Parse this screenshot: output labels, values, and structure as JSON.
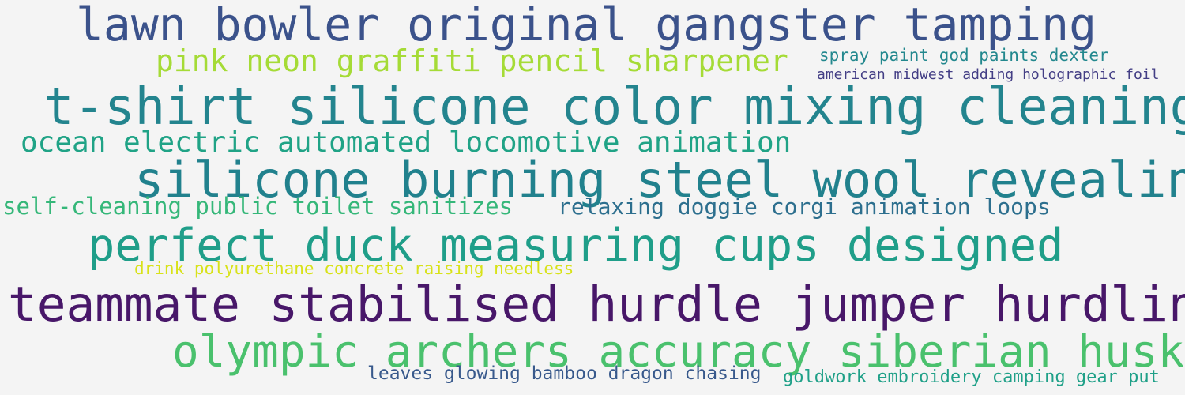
{
  "phrases": [
    {
      "text": "lawn bowler original gangster tamping",
      "color": "#3b528b"
    },
    {
      "text": "pink neon graffiti pencil sharpener",
      "color": "#a5db36"
    },
    {
      "text": "spray paint god paints dexter",
      "color": "#23888e"
    },
    {
      "text": "american midwest adding holographic foil",
      "color": "#433e85"
    },
    {
      "text": "t-shirt silicone color mixing cleaning",
      "color": "#23848e"
    },
    {
      "text": "ocean electric automated locomotive animation",
      "color": "#20a386"
    },
    {
      "text": "silicone burning steel wool revealing",
      "color": "#21818d"
    },
    {
      "text": "self-cleaning public toilet sanitizes",
      "color": "#35b779"
    },
    {
      "text": "relaxing doggie corgi animation loops",
      "color": "#2d6f8e"
    },
    {
      "text": "perfect duck measuring cups designed",
      "color": "#1f9e89"
    },
    {
      "text": "drink polyurethane concrete raising needless",
      "color": "#d8e219"
    },
    {
      "text": "teammate stabilised hurdle jumper hurdling",
      "color": "#481769"
    },
    {
      "text": "olympic archers accuracy siberian husky",
      "color": "#4ac16d"
    },
    {
      "text": "leaves glowing bamboo dragon chasing",
      "color": "#38598c"
    },
    {
      "text": "goldwork embroidery camping gear put",
      "color": "#1fa088"
    }
  ]
}
